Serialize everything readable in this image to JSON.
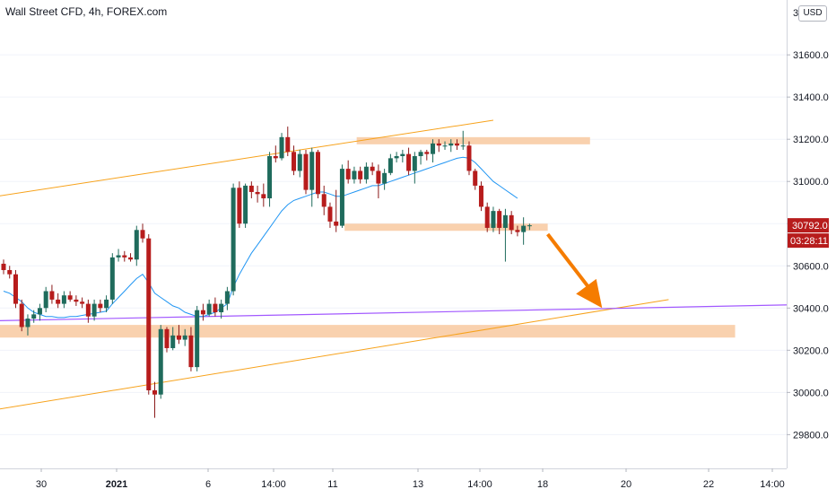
{
  "title": "Wall Street CFD, 4h, FOREX.com",
  "currency_button": "USD",
  "colors": {
    "up": "#26a69a",
    "down": "#ef5350",
    "body_up": "#1f6b5c",
    "body_down": "#b71c1c",
    "zone": "#f8c9a0",
    "trendline": "#f7a21b",
    "ma": "#2196f3",
    "purple_line": "#a259ff",
    "arrow": "#f57c00",
    "price_tag": "#b71c1c",
    "axis_text": "#131722",
    "grid": "#f0f3fa"
  },
  "chart_data": {
    "type": "candlestick",
    "title": "Wall Street CFD, 4h, FOREX.com",
    "y_axis": {
      "ticks": [
        29800.0,
        30000.0,
        30200.0,
        30400.0,
        30600.0,
        30800.0,
        31000.0,
        31200.0,
        31400.0,
        31600.0
      ],
      "tick_labels": [
        "29800.0",
        "30000.0",
        "30200.0",
        "30400.0",
        "30600.0",
        "30800.0",
        "31000.0",
        "31200.0",
        "31400.0",
        "31600.0"
      ],
      "top_partial_label": "3",
      "range": [
        29640,
        31860
      ]
    },
    "x_axis": {
      "labels": [
        {
          "label": "30",
          "bold": false
        },
        {
          "label": "2021",
          "bold": true
        },
        {
          "label": "6",
          "bold": false
        },
        {
          "label": "14:00",
          "bold": false
        },
        {
          "label": "11",
          "bold": false
        },
        {
          "label": "13",
          "bold": false
        },
        {
          "label": "14:00",
          "bold": false
        },
        {
          "label": "18",
          "bold": false
        },
        {
          "label": "20",
          "bold": false
        },
        {
          "label": "22",
          "bold": false
        },
        {
          "label": "14:00",
          "bold": false
        }
      ]
    },
    "price_tags": {
      "last_price": "30792.0",
      "countdown": "03:28:11"
    },
    "candles": [
      [
        30610,
        30630,
        30560,
        30580
      ],
      [
        30580,
        30600,
        30540,
        30560
      ],
      [
        30560,
        30580,
        30400,
        30420
      ],
      [
        30420,
        30440,
        30290,
        30310
      ],
      [
        30310,
        30370,
        30270,
        30350
      ],
      [
        30350,
        30390,
        30330,
        30370
      ],
      [
        30370,
        30420,
        30340,
        30400
      ],
      [
        30400,
        30500,
        30380,
        30480
      ],
      [
        30480,
        30510,
        30420,
        30440
      ],
      [
        30440,
        30470,
        30400,
        30420
      ],
      [
        30420,
        30480,
        30400,
        30460
      ],
      [
        30460,
        30480,
        30430,
        30440
      ],
      [
        30440,
        30460,
        30410,
        30430
      ],
      [
        30430,
        30450,
        30400,
        30420
      ],
      [
        30420,
        30440,
        30330,
        30360
      ],
      [
        30360,
        30440,
        30340,
        30420
      ],
      [
        30420,
        30440,
        30380,
        30400
      ],
      [
        30400,
        30460,
        30380,
        30440
      ],
      [
        30440,
        30660,
        30420,
        30640
      ],
      [
        30640,
        30680,
        30620,
        30650
      ],
      [
        30650,
        30670,
        30620,
        30640
      ],
      [
        30640,
        30660,
        30620,
        30630
      ],
      [
        30630,
        30790,
        30600,
        30770
      ],
      [
        30770,
        30800,
        30710,
        30730
      ],
      [
        30730,
        30750,
        29990,
        30010
      ],
      [
        30010,
        30050,
        29880,
        29990
      ],
      [
        29990,
        30320,
        29970,
        30300
      ],
      [
        30300,
        30310,
        30190,
        30210
      ],
      [
        30210,
        30310,
        30200,
        30270
      ],
      [
        30270,
        30320,
        30230,
        30250
      ],
      [
        30250,
        30300,
        30220,
        30270
      ],
      [
        30270,
        30310,
        30100,
        30120
      ],
      [
        30120,
        30410,
        30100,
        30390
      ],
      [
        30390,
        30420,
        30340,
        30370
      ],
      [
        30370,
        30440,
        30360,
        30420
      ],
      [
        30420,
        30450,
        30360,
        30380
      ],
      [
        30380,
        30440,
        30350,
        30420
      ],
      [
        30420,
        30500,
        30390,
        30480
      ],
      [
        30480,
        30990,
        30460,
        30970
      ],
      [
        30970,
        31000,
        30780,
        30800
      ],
      [
        30800,
        30990,
        30780,
        30980
      ],
      [
        30980,
        31000,
        30920,
        30950
      ],
      [
        30950,
        30980,
        30900,
        30940
      ],
      [
        30940,
        30990,
        30880,
        30920
      ],
      [
        30920,
        31140,
        30880,
        31120
      ],
      [
        31120,
        31170,
        31090,
        31110
      ],
      [
        31110,
        31230,
        31100,
        31210
      ],
      [
        31210,
        31260,
        31120,
        31140
      ],
      [
        31140,
        31170,
        31030,
        31050
      ],
      [
        31050,
        31150,
        31020,
        31130
      ],
      [
        31130,
        31150,
        30940,
        30960
      ],
      [
        30960,
        31160,
        30880,
        31140
      ],
      [
        31140,
        31150,
        30920,
        30940
      ],
      [
        30940,
        30980,
        30840,
        30880
      ],
      [
        30880,
        30900,
        30780,
        30810
      ],
      [
        30810,
        30960,
        30760,
        30790
      ],
      [
        30790,
        31080,
        30780,
        31060
      ],
      [
        31060,
        31100,
        30990,
        31010
      ],
      [
        31010,
        31070,
        30990,
        31050
      ],
      [
        31050,
        31070,
        30990,
        31010
      ],
      [
        31010,
        31090,
        30990,
        31070
      ],
      [
        31070,
        31090,
        31030,
        31050
      ],
      [
        31050,
        31080,
        30920,
        30990
      ],
      [
        30990,
        31060,
        30960,
        31040
      ],
      [
        31040,
        31130,
        31030,
        31110
      ],
      [
        31110,
        31140,
        31090,
        31120
      ],
      [
        31120,
        31150,
        31090,
        31130
      ],
      [
        31130,
        31160,
        31030,
        31050
      ],
      [
        31050,
        31140,
        30990,
        31120
      ],
      [
        31120,
        31150,
        31080,
        31140
      ],
      [
        31140,
        31150,
        31100,
        31130
      ],
      [
        31130,
        31200,
        31090,
        31180
      ],
      [
        31180,
        31200,
        31140,
        31170
      ],
      [
        31170,
        31190,
        31150,
        31170
      ],
      [
        31170,
        31200,
        31140,
        31180
      ],
      [
        31180,
        31200,
        31150,
        31170
      ],
      [
        31170,
        31240,
        31150,
        31170
      ],
      [
        31170,
        31190,
        31030,
        31050
      ],
      [
        31050,
        31060,
        30960,
        30980
      ],
      [
        30980,
        31000,
        30860,
        30880
      ],
      [
        30880,
        30900,
        30760,
        30780
      ],
      [
        30780,
        30880,
        30760,
        30860
      ],
      [
        30860,
        30870,
        30750,
        30780
      ],
      [
        30780,
        30870,
        30620,
        30840
      ],
      [
        30840,
        30860,
        30750,
        30770
      ],
      [
        30770,
        30790,
        30740,
        30760
      ],
      [
        30760,
        30830,
        30700,
        30790
      ],
      [
        30790,
        30800,
        30770,
        30792
      ]
    ],
    "moving_average": {
      "name": "",
      "values": [
        30480,
        30470,
        30450,
        30430,
        30400,
        30380,
        30370,
        30360,
        30360,
        30355,
        30355,
        30360,
        30360,
        30365,
        30370,
        30375,
        30380,
        30385,
        30420,
        30450,
        30480,
        30510,
        30540,
        30560,
        30520,
        30470,
        30450,
        30430,
        30410,
        30400,
        30380,
        30370,
        30360,
        30360,
        30370,
        30380,
        30400,
        30420,
        30500,
        30560,
        30610,
        30660,
        30700,
        30740,
        30780,
        30820,
        30860,
        30890,
        30910,
        30920,
        30930,
        30940,
        30950,
        30950,
        30940,
        30930,
        30930,
        30940,
        30950,
        30960,
        30970,
        30980,
        30980,
        30990,
        31000,
        31010,
        31020,
        31030,
        31040,
        31050,
        31060,
        31070,
        31080,
        31090,
        31100,
        31110,
        31115,
        31110,
        31090,
        31060,
        31030,
        31000,
        30980,
        30960,
        30940,
        30920
      ]
    },
    "horizontal_zones": [
      {
        "y_top": 31210,
        "y_bottom": 31180,
        "x_start_bar": 59,
        "x_end_bar": 97
      },
      {
        "y_top": 30800,
        "y_bottom": 30770,
        "x_start_bar": 57,
        "x_end_bar": 90
      },
      {
        "y_top": 30320,
        "y_bottom": 30260,
        "x_start_bar": 0,
        "x_end_bar": 121
      }
    ],
    "trendlines": [
      {
        "name": "upper-channel",
        "x1_bar": -1,
        "y1": 30930,
        "x2_bar": 81,
        "y2": 31290
      },
      {
        "name": "lower-channel",
        "x1_bar": -1,
        "y1": 29920,
        "x2_bar": 110,
        "y2": 30440
      },
      {
        "name": "purple-line",
        "x1_bar": -1,
        "y1": 30340,
        "x2_bar": 130,
        "y2": 30415
      }
    ],
    "arrow": {
      "from_bar": 90,
      "from_y": 30750,
      "to_bar": 99,
      "to_y": 30400
    }
  }
}
